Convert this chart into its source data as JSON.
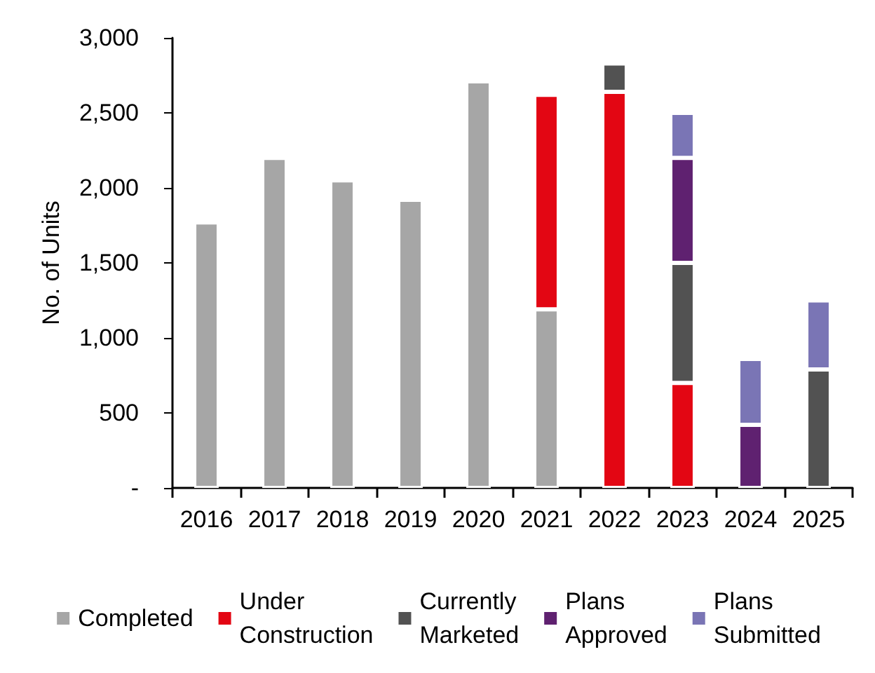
{
  "chart_data": {
    "type": "bar",
    "stacked": true,
    "ylabel": "No. of Units",
    "categories": [
      "2016",
      "2017",
      "2018",
      "2019",
      "2020",
      "2021",
      "2022",
      "2023",
      "2024",
      "2025"
    ],
    "series": [
      {
        "name": "Completed",
        "color": "#a6a6a6",
        "values": [
          1770,
          2200,
          2050,
          1920,
          2710,
          1190,
          null,
          null,
          null,
          null
        ]
      },
      {
        "name": "Under Construction",
        "color": "#e30613",
        "values": [
          null,
          null,
          null,
          null,
          null,
          1430,
          2640,
          700,
          null,
          null
        ]
      },
      {
        "name": "Currently Marketed",
        "color": "#525252",
        "values": [
          null,
          null,
          null,
          null,
          null,
          null,
          190,
          800,
          null,
          790
        ]
      },
      {
        "name": "Plans Approved",
        "color": "#5f2170",
        "values": [
          null,
          null,
          null,
          null,
          null,
          null,
          null,
          700,
          420,
          null
        ]
      },
      {
        "name": "Plans Submitted",
        "color": "#7a75b5",
        "values": [
          null,
          null,
          null,
          null,
          null,
          null,
          null,
          300,
          440,
          460
        ]
      }
    ],
    "ylim": [
      0,
      3000
    ],
    "yticks": [
      {
        "value": 0,
        "label": "-"
      },
      {
        "value": 500,
        "label": "500"
      },
      {
        "value": 1000,
        "label": "1,000"
      },
      {
        "value": 1500,
        "label": "1,500"
      },
      {
        "value": 2000,
        "label": "2,000"
      },
      {
        "value": 2500,
        "label": "2,500"
      },
      {
        "value": 3000,
        "label": "3,000"
      }
    ],
    "grid": false,
    "legend": "bottom"
  }
}
